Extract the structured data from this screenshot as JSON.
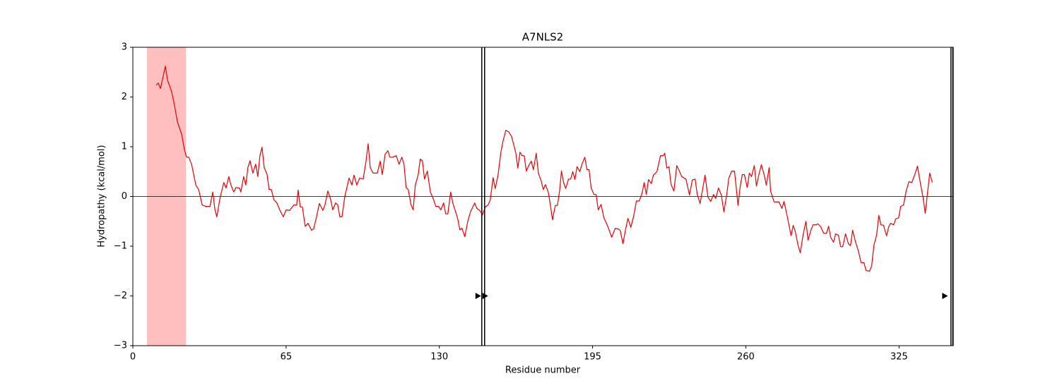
{
  "chart_data": {
    "type": "line",
    "title": "A7NLS2",
    "x_label": "Residue number",
    "y_label": "Hydropathy (kcal/mol)",
    "xlim": [
      0,
      348
    ],
    "ylim": [
      -3,
      3
    ],
    "xticks": [
      0,
      65,
      130,
      195,
      260,
      325
    ],
    "yticks": [
      {
        "value": -3,
        "label": "−3"
      },
      {
        "value": -2,
        "label": "−2"
      },
      {
        "value": -1,
        "label": "−1"
      },
      0,
      1,
      2,
      3
    ],
    "hline": 0,
    "highlight_span": {
      "range": [
        6,
        22.5
      ],
      "color": "#ffbfbf"
    },
    "vertical_lines": [
      148,
      149.2,
      347,
      347.8
    ],
    "markers": {
      "x": [
        146.5,
        149.5,
        344.5
      ],
      "y": [
        -2,
        -2,
        -2
      ],
      "color": "#000000"
    },
    "x": [
      9.9,
      10.8,
      11.7,
      13.8,
      14.7,
      16.5,
      17.7,
      18.9,
      20.7,
      21.9,
      22.8,
      23.7,
      24.9,
      26.7,
      27.9,
      29.4,
      30.9,
      32.7,
      33.9,
      34.8,
      35.6,
      37.1,
      38.6,
      39.5,
      40.7,
      41.6,
      42.8,
      43.7,
      45.2,
      45.8,
      47.0,
      47.9,
      48.8,
      49.7,
      50.9,
      52.1,
      53.0,
      53.9,
      54.8,
      55.7,
      56.9,
      57.8,
      58.7,
      59.9,
      61.1,
      62.3,
      63.8,
      65.0,
      66.5,
      68.3,
      69.5,
      70.1,
      71.0,
      71.9,
      73.1,
      74.3,
      75.8,
      76.7,
      77.9,
      79.1,
      80.6,
      81.5,
      82.7,
      83.9,
      84.8,
      86.0,
      86.9,
      87.8,
      88.7,
      89.9,
      91.7,
      92.9,
      93.8,
      95.0,
      96.2,
      97.7,
      98.9,
      99.8,
      100.7,
      101.9,
      103.7,
      104.9,
      105.8,
      107.0,
      108.2,
      109.0,
      110.2,
      111.7,
      112.9,
      114.1,
      115.0,
      115.9,
      116.8,
      118.0,
      118.9,
      119.8,
      121.0,
      121.9,
      122.8,
      123.7,
      124.9,
      126.2,
      127.6,
      128.5,
      129.7,
      130.6,
      131.8,
      132.7,
      133.6,
      134.8,
      135.7,
      136.9,
      137.8,
      138.7,
      139.6,
      140.8,
      142.0,
      143.2,
      145.0,
      145.9,
      147.1,
      148.3,
      149.5,
      150.7,
      151.6,
      152.8,
      153.7,
      154.9,
      156.1,
      157.0,
      158.2,
      159.4,
      160.6,
      161.5,
      162.4,
      163.3,
      164.2,
      165.1,
      166.0,
      166.9,
      168.1,
      169.0,
      169.9,
      171.1,
      172.0,
      173.2,
      174.1,
      175.0,
      176.2,
      177.1,
      178.0,
      179.2,
      180.1,
      181.0,
      181.8,
      182.7,
      183.6,
      184.8,
      185.7,
      186.6,
      187.5,
      188.4,
      189.6,
      190.5,
      191.7,
      192.6,
      193.5,
      194.4,
      195.6,
      196.5,
      197.4,
      198.6,
      199.8,
      200.7,
      201.6,
      203.1,
      204.6,
      205.8,
      206.7,
      207.9,
      208.8,
      210.0,
      211.2,
      212.4,
      213.6,
      214.8,
      216.0,
      216.9,
      217.8,
      218.7,
      219.9,
      220.8,
      222.3,
      223.8,
      225.0,
      225.6,
      226.5,
      227.4,
      228.3,
      229.5,
      230.7,
      231.9,
      232.8,
      234.6,
      236.1,
      237.3,
      238.5,
      239.4,
      240.6,
      241.8,
      242.7,
      243.9,
      245.1,
      246.3,
      247.2,
      248.4,
      249.6,
      250.7,
      251.9,
      252.8,
      254.0,
      255.2,
      256.7,
      257.6,
      258.5,
      259.4,
      260.6,
      261.5,
      262.4,
      263.6,
      264.5,
      265.4,
      266.6,
      267.8,
      268.7,
      269.9,
      270.5,
      272.0,
      273.2,
      274.1,
      275.3,
      276.2,
      277.7,
      279.2,
      280.1,
      281.0,
      282.2,
      283.1,
      284.3,
      285.5,
      286.4,
      287.6,
      288.5,
      289.7,
      290.6,
      291.8,
      293.0,
      294.2,
      295.1,
      296.0,
      297.2,
      298.1,
      299.3,
      300.2,
      301.1,
      302.3,
      303.5,
      304.4,
      305.3,
      306.5,
      307.7,
      308.9,
      310.1,
      311.0,
      312.5,
      313.4,
      314.3,
      315.5,
      316.4,
      317.3,
      318.4,
      319.7,
      320.6,
      321.4,
      322.7,
      323.6,
      324.8,
      325.7,
      326.9,
      328.0,
      329.2,
      330.4,
      331.6,
      332.8,
      334.0,
      335.2,
      336.1,
      337.0,
      338.0,
      339.1
    ],
    "series": [
      {
        "color": "#e60000",
        "values": [
          2.24,
          2.28,
          2.17,
          2.62,
          2.34,
          2.1,
          1.82,
          1.5,
          1.25,
          0.94,
          0.79,
          0.79,
          0.65,
          0.23,
          0.14,
          -0.17,
          -0.2,
          -0.2,
          0.09,
          -0.26,
          -0.41,
          0,
          0.28,
          0.17,
          0.4,
          0.23,
          0.09,
          0.18,
          0.17,
          0.09,
          0.4,
          0.23,
          0.58,
          0.72,
          0.47,
          0.65,
          0.4,
          0.82,
          0.99,
          0.58,
          0.45,
          0.14,
          0.14,
          -0.07,
          -0.13,
          -0.27,
          -0.41,
          -0.27,
          -0.28,
          -0.17,
          -0.17,
          0.13,
          -0.21,
          -0.21,
          -0.6,
          -0.54,
          -0.68,
          -0.65,
          -0.41,
          -0.14,
          -0.28,
          -0.17,
          0.11,
          -0.06,
          -0.27,
          -0.13,
          -0.17,
          -0.41,
          -0.41,
          0,
          0.37,
          0.23,
          0.43,
          0.23,
          0.37,
          0.35,
          0.71,
          1.06,
          0.58,
          0.47,
          0.47,
          0.71,
          0.44,
          0.85,
          0.92,
          0.79,
          0.79,
          0.82,
          0.65,
          0.79,
          0.65,
          0.18,
          0.14,
          -0.17,
          -0.27,
          0.23,
          0.43,
          0.75,
          0.72,
          0.35,
          0.51,
          0.09,
          -0.07,
          -0.2,
          -0.2,
          -0.27,
          -0.13,
          -0.35,
          -0.35,
          0.09,
          -0.13,
          -0.31,
          -0.45,
          -0.67,
          -0.64,
          -0.81,
          -0.51,
          -0.31,
          -0.13,
          -0.24,
          -0.28,
          -0.37,
          -0.21,
          -0.17,
          -0.07,
          0.38,
          0.16,
          0.43,
          0.89,
          1.11,
          1.33,
          1.3,
          1.21,
          1.05,
          0.88,
          0.57,
          0.89,
          0.82,
          0.82,
          0.51,
          0.64,
          0.71,
          0.54,
          0.87,
          0.47,
          0.31,
          0.14,
          0.24,
          0.09,
          -0.17,
          -0.47,
          -0.18,
          -0.18,
          0.11,
          0.51,
          0.28,
          0.16,
          0.35,
          0.35,
          0.5,
          0.34,
          0.6,
          0.5,
          0.65,
          0.79,
          0.54,
          0.54,
          0.17,
          0.04,
          0.04,
          -0.27,
          -0.16,
          -0.43,
          -0.52,
          -0.62,
          -0.82,
          -0.64,
          -0.65,
          -0.68,
          -0.95,
          -0.71,
          -0.44,
          -0.62,
          -0.4,
          -0.09,
          -0.09,
          0.07,
          0.28,
          0.04,
          0.34,
          0.26,
          0.43,
          0.5,
          0.82,
          0.82,
          0.87,
          0.57,
          0.6,
          0.24,
          0.11,
          0.62,
          0.5,
          0.4,
          0.35,
          0.03,
          0.33,
          0.35,
          0.04,
          -0.14,
          0.18,
          0.43,
          -0.01,
          -0.1,
          0.04,
          -0.04,
          0.17,
          0.03,
          -0.31,
          0.04,
          0.37,
          0.51,
          0.51,
          -0.18,
          0.2,
          0.44,
          0.44,
          0.18,
          0.47,
          0.4,
          0.62,
          0.21,
          0.41,
          0.64,
          0.43,
          0.23,
          0.58,
          0.11,
          -0.11,
          -0.11,
          -0.11,
          -0.24,
          -0.1,
          -0.43,
          -0.79,
          -0.58,
          -0.71,
          -0.99,
          -1.13,
          -0.77,
          -0.5,
          -0.88,
          -0.68,
          -0.57,
          -0.57,
          -0.55,
          -0.61,
          -0.74,
          -0.74,
          -0.6,
          -0.82,
          -0.92,
          -0.75,
          -0.78,
          -1.01,
          -1.01,
          -0.75,
          -0.95,
          -0.99,
          -0.68,
          -0.91,
          -1.09,
          -1.33,
          -1.33,
          -1.49,
          -1.5,
          -1.39,
          -0.99,
          -0.77,
          -0.38,
          -0.57,
          -0.58,
          -0.79,
          -0.61,
          -0.54,
          -0.57,
          -0.45,
          -0.43,
          -0.2,
          -0.17,
          0.11,
          0.3,
          0.28,
          0.43,
          0.61,
          0.28,
          -0.03,
          -0.34,
          0.04,
          0.47,
          0.28
        ]
      }
    ]
  }
}
